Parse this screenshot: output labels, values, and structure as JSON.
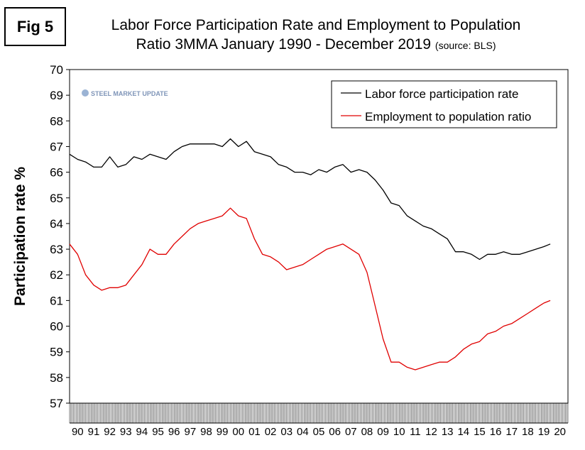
{
  "figure_label": "Fig 5",
  "title_line1": "Labor Force Participation Rate and Employment to Population",
  "title_line2": "Ratio 3MMA January 1990 - December 2019",
  "title_source": "(source: BLS)",
  "watermark": "STEEL MARKET UPDATE",
  "colors": {
    "lfpr": "#000000",
    "epop": "#e00000"
  },
  "chart_data": {
    "type": "line",
    "title": "Labor Force Participation Rate and Employment to Population Ratio 3MMA January 1990 - December 2019 (source: BLS)",
    "xlabel": "",
    "ylabel": "Participation rate %",
    "ylim": [
      57,
      70
    ],
    "yticks": [
      57,
      58,
      59,
      60,
      61,
      62,
      63,
      64,
      65,
      66,
      67,
      68,
      69,
      70
    ],
    "xlim": [
      1990,
      2021
    ],
    "x_tick_labels": [
      "90",
      "91",
      "92",
      "93",
      "94",
      "95",
      "96",
      "97",
      "98",
      "99",
      "00",
      "01",
      "02",
      "03",
      "04",
      "05",
      "06",
      "07",
      "08",
      "09",
      "10",
      "11",
      "12",
      "13",
      "14",
      "15",
      "16",
      "17",
      "18",
      "19",
      "20"
    ],
    "legend_position": "top-right",
    "grid": false,
    "series": [
      {
        "name": "Labor force participation rate",
        "points": [
          [
            1990.0,
            66.7
          ],
          [
            1990.5,
            66.5
          ],
          [
            1991.0,
            66.4
          ],
          [
            1991.5,
            66.2
          ],
          [
            1992.0,
            66.2
          ],
          [
            1992.5,
            66.6
          ],
          [
            1993.0,
            66.2
          ],
          [
            1993.5,
            66.3
          ],
          [
            1994.0,
            66.6
          ],
          [
            1994.5,
            66.5
          ],
          [
            1995.0,
            66.7
          ],
          [
            1995.5,
            66.6
          ],
          [
            1996.0,
            66.5
          ],
          [
            1996.5,
            66.8
          ],
          [
            1997.0,
            67.0
          ],
          [
            1997.5,
            67.1
          ],
          [
            1998.0,
            67.1
          ],
          [
            1998.5,
            67.1
          ],
          [
            1999.0,
            67.1
          ],
          [
            1999.5,
            67.0
          ],
          [
            2000.0,
            67.3
          ],
          [
            2000.5,
            67.0
          ],
          [
            2001.0,
            67.2
          ],
          [
            2001.5,
            66.8
          ],
          [
            2002.0,
            66.7
          ],
          [
            2002.5,
            66.6
          ],
          [
            2003.0,
            66.3
          ],
          [
            2003.5,
            66.2
          ],
          [
            2004.0,
            66.0
          ],
          [
            2004.5,
            66.0
          ],
          [
            2005.0,
            65.9
          ],
          [
            2005.5,
            66.1
          ],
          [
            2006.0,
            66.0
          ],
          [
            2006.5,
            66.2
          ],
          [
            2007.0,
            66.3
          ],
          [
            2007.5,
            66.0
          ],
          [
            2008.0,
            66.1
          ],
          [
            2008.5,
            66.0
          ],
          [
            2009.0,
            65.7
          ],
          [
            2009.5,
            65.3
          ],
          [
            2010.0,
            64.8
          ],
          [
            2010.5,
            64.7
          ],
          [
            2011.0,
            64.3
          ],
          [
            2011.5,
            64.1
          ],
          [
            2012.0,
            63.9
          ],
          [
            2012.5,
            63.8
          ],
          [
            2013.0,
            63.6
          ],
          [
            2013.5,
            63.4
          ],
          [
            2014.0,
            62.9
          ],
          [
            2014.5,
            62.9
          ],
          [
            2015.0,
            62.8
          ],
          [
            2015.5,
            62.6
          ],
          [
            2016.0,
            62.8
          ],
          [
            2016.5,
            62.8
          ],
          [
            2017.0,
            62.9
          ],
          [
            2017.5,
            62.8
          ],
          [
            2018.0,
            62.8
          ],
          [
            2018.5,
            62.9
          ],
          [
            2019.0,
            63.0
          ],
          [
            2019.5,
            63.1
          ],
          [
            2019.9,
            63.2
          ]
        ]
      },
      {
        "name": "Employment to population ratio",
        "points": [
          [
            1990.0,
            63.2
          ],
          [
            1990.5,
            62.8
          ],
          [
            1991.0,
            62.0
          ],
          [
            1991.5,
            61.6
          ],
          [
            1992.0,
            61.4
          ],
          [
            1992.5,
            61.5
          ],
          [
            1993.0,
            61.5
          ],
          [
            1993.5,
            61.6
          ],
          [
            1994.0,
            62.0
          ],
          [
            1994.5,
            62.4
          ],
          [
            1995.0,
            63.0
          ],
          [
            1995.5,
            62.8
          ],
          [
            1996.0,
            62.8
          ],
          [
            1996.5,
            63.2
          ],
          [
            1997.0,
            63.5
          ],
          [
            1997.5,
            63.8
          ],
          [
            1998.0,
            64.0
          ],
          [
            1998.5,
            64.1
          ],
          [
            1999.0,
            64.2
          ],
          [
            1999.5,
            64.3
          ],
          [
            2000.0,
            64.6
          ],
          [
            2000.5,
            64.3
          ],
          [
            2001.0,
            64.2
          ],
          [
            2001.5,
            63.4
          ],
          [
            2002.0,
            62.8
          ],
          [
            2002.5,
            62.7
          ],
          [
            2003.0,
            62.5
          ],
          [
            2003.5,
            62.2
          ],
          [
            2004.0,
            62.3
          ],
          [
            2004.5,
            62.4
          ],
          [
            2005.0,
            62.6
          ],
          [
            2005.5,
            62.8
          ],
          [
            2006.0,
            63.0
          ],
          [
            2006.5,
            63.1
          ],
          [
            2007.0,
            63.2
          ],
          [
            2007.5,
            63.0
          ],
          [
            2008.0,
            62.8
          ],
          [
            2008.5,
            62.1
          ],
          [
            2009.0,
            60.8
          ],
          [
            2009.5,
            59.5
          ],
          [
            2010.0,
            58.6
          ],
          [
            2010.5,
            58.6
          ],
          [
            2011.0,
            58.4
          ],
          [
            2011.5,
            58.3
          ],
          [
            2012.0,
            58.4
          ],
          [
            2012.5,
            58.5
          ],
          [
            2013.0,
            58.6
          ],
          [
            2013.5,
            58.6
          ],
          [
            2014.0,
            58.8
          ],
          [
            2014.5,
            59.1
          ],
          [
            2015.0,
            59.3
          ],
          [
            2015.5,
            59.4
          ],
          [
            2016.0,
            59.7
          ],
          [
            2016.5,
            59.8
          ],
          [
            2017.0,
            60.0
          ],
          [
            2017.5,
            60.1
          ],
          [
            2018.0,
            60.3
          ],
          [
            2018.5,
            60.5
          ],
          [
            2019.0,
            60.7
          ],
          [
            2019.5,
            60.9
          ],
          [
            2019.9,
            61.0
          ]
        ]
      }
    ]
  }
}
